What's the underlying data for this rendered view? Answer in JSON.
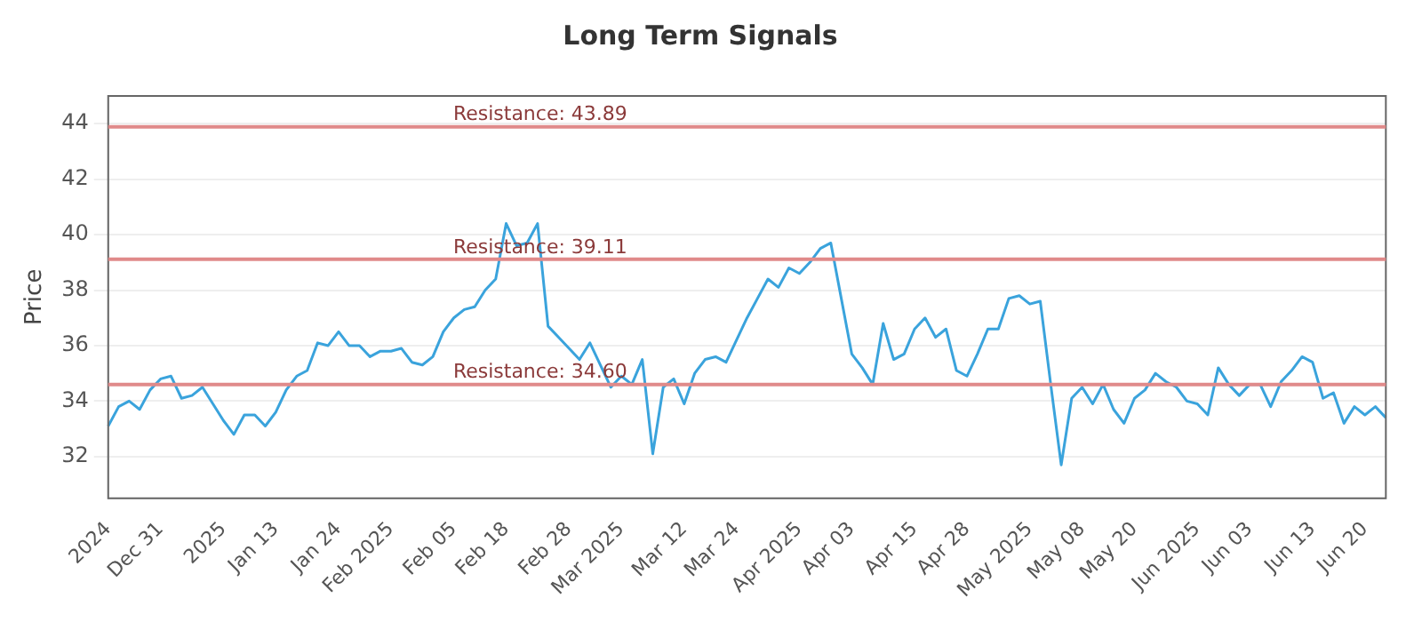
{
  "chart_data": {
    "type": "line",
    "title": "Long Term Signals",
    "ylabel": "Price",
    "categories": [
      "2024",
      null,
      null,
      null,
      null,
      "Dec 31",
      null,
      null,
      null,
      null,
      null,
      "2025",
      null,
      null,
      null,
      null,
      "Jan 13",
      null,
      null,
      null,
      null,
      null,
      "Jan 24",
      null,
      null,
      null,
      null,
      "Feb 2025",
      null,
      null,
      null,
      null,
      null,
      "Feb 05",
      null,
      null,
      null,
      null,
      "Feb 18",
      null,
      null,
      null,
      null,
      null,
      "Feb 28",
      null,
      null,
      null,
      null,
      "Mar 2025",
      null,
      null,
      null,
      null,
      null,
      "Mar 12",
      null,
      null,
      null,
      null,
      "Mar 24",
      null,
      null,
      null,
      null,
      null,
      "Apr 2025",
      null,
      null,
      null,
      null,
      "Apr 03",
      null,
      null,
      null,
      null,
      null,
      "Apr 15",
      null,
      null,
      null,
      null,
      "Apr 28",
      null,
      null,
      null,
      null,
      null,
      "May 2025",
      null,
      null,
      null,
      null,
      "May 08",
      null,
      null,
      null,
      null,
      "May 20",
      null,
      null,
      null,
      null,
      null,
      "Jun 2025",
      null,
      null,
      null,
      null,
      "Jun 03",
      null,
      null,
      null,
      null,
      null,
      "Jun 13",
      null,
      null,
      null,
      null,
      "Jun 20",
      null,
      null
    ],
    "series": [
      {
        "color": "#3aa3dc",
        "values": [
          33.1,
          33.8,
          34.0,
          33.7,
          34.4,
          34.8,
          34.9,
          34.1,
          34.2,
          34.5,
          33.9,
          33.3,
          32.8,
          33.5,
          33.5,
          33.1,
          33.6,
          34.4,
          34.9,
          35.1,
          36.1,
          36.0,
          36.5,
          36.0,
          36.0,
          35.6,
          35.8,
          35.8,
          35.9,
          35.4,
          35.3,
          35.6,
          36.5,
          37.0,
          37.3,
          37.4,
          38.0,
          38.4,
          40.4,
          39.6,
          39.7,
          40.4,
          36.7,
          36.3,
          35.9,
          35.5,
          36.1,
          35.3,
          34.5,
          34.9,
          34.6,
          35.5,
          32.1,
          34.5,
          34.8,
          33.9,
          35.0,
          35.5,
          35.6,
          35.4,
          36.2,
          37.0,
          37.7,
          38.4,
          38.1,
          38.8,
          38.6,
          39.0,
          39.5,
          39.7,
          37.7,
          35.7,
          35.2,
          34.6,
          36.8,
          35.5,
          35.7,
          36.6,
          37.0,
          36.3,
          36.6,
          35.1,
          34.9,
          35.7,
          36.6,
          36.6,
          37.7,
          37.8,
          37.5,
          37.6,
          34.6,
          31.7,
          34.1,
          34.5,
          33.9,
          34.6,
          33.7,
          33.2,
          34.1,
          34.4,
          35.0,
          34.7,
          34.5,
          34.0,
          33.9,
          33.5,
          35.2,
          34.6,
          34.2,
          34.6,
          34.6,
          33.8,
          34.7,
          35.1,
          35.6,
          35.4,
          34.1,
          34.3,
          33.2,
          33.8,
          33.5,
          33.8,
          33.4
        ]
      }
    ],
    "ylim": [
      30.5,
      45
    ],
    "yticks": [
      32,
      34,
      36,
      38,
      40,
      42,
      44
    ],
    "grid": "y",
    "legend": false,
    "marker": "none",
    "line_style": "solid",
    "ref_lines": [
      {
        "axis": "y",
        "value": 43.89,
        "label": "Resistance: 43.89",
        "color": "#e08a8a"
      },
      {
        "axis": "y",
        "value": 39.11,
        "label": "Resistance: 39.11",
        "color": "#e08a8a"
      },
      {
        "axis": "y",
        "value": 34.6,
        "label": "Resistance: 34.60",
        "color": "#e08a8a"
      }
    ]
  }
}
